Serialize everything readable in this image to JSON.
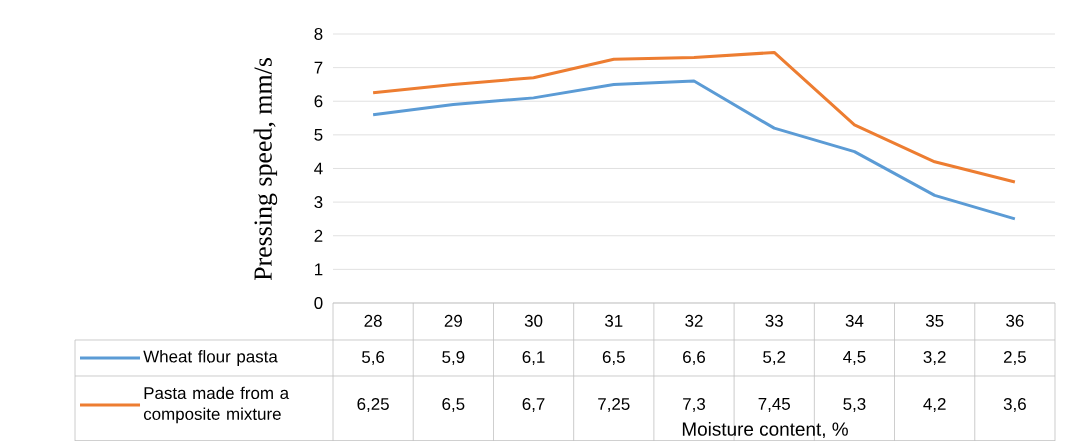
{
  "chart_data": {
    "type": "line",
    "annotations": [
      "Moisture content, %"
    ],
    "ylabel": "Pressing speed,  mm/s",
    "categories": [
      "28",
      "29",
      "30",
      "31",
      "32",
      "33",
      "34",
      "35",
      "36"
    ],
    "series": [
      {
        "name": "Wheat flour pasta",
        "color": "#5b9bd5",
        "values": [
          5.6,
          5.9,
          6.1,
          6.5,
          6.6,
          5.2,
          4.5,
          3.2,
          2.5
        ],
        "value_labels": [
          "5,6",
          "5,9",
          "6,1",
          "6,5",
          "6,6",
          "5,2",
          "4,5",
          "3,2",
          "2,5"
        ]
      },
      {
        "name": "Pasta made from a composite mixture",
        "color": "#ed7d31",
        "values": [
          6.25,
          6.5,
          6.7,
          7.25,
          7.3,
          7.45,
          5.3,
          4.2,
          3.6
        ],
        "value_labels": [
          "6,25",
          "6,5",
          "6,7",
          "7,25",
          "7,3",
          "7,45",
          "5,3",
          "4,2",
          "3,6"
        ]
      }
    ],
    "ylim": [
      0,
      8
    ],
    "yticks": [
      0,
      1,
      2,
      3,
      4,
      5,
      6,
      7,
      8
    ],
    "grid": "y",
    "legend": "bottom",
    "marker": "none",
    "line_style": "solid"
  }
}
